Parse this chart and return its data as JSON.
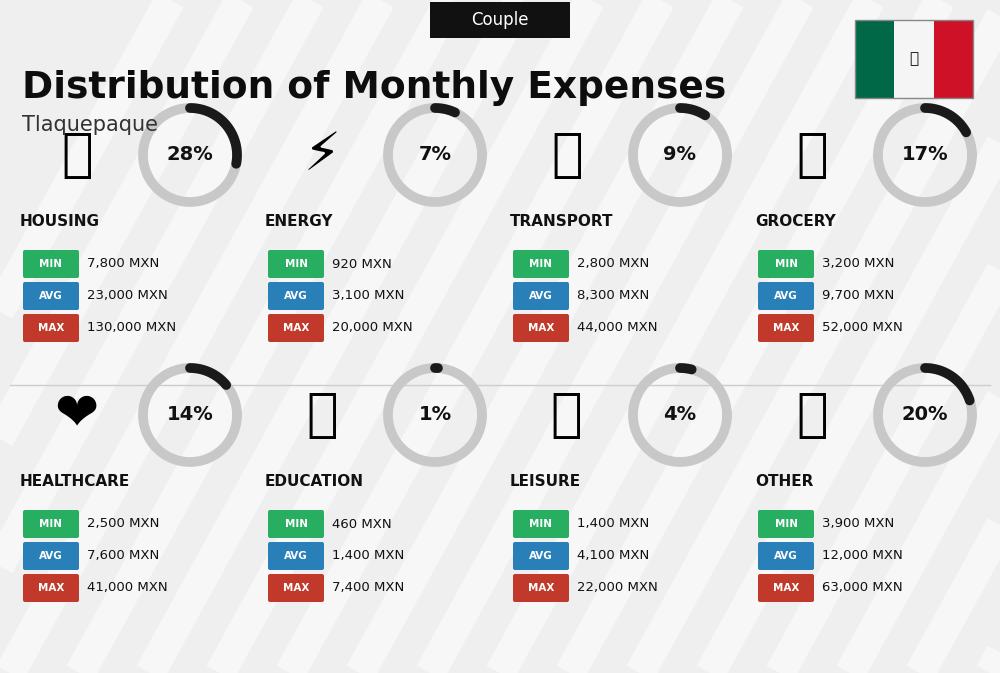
{
  "title": "Distribution of Monthly Expenses",
  "subtitle": "Tlaquepaque",
  "label_couple": "Couple",
  "bg_color": "#efefef",
  "categories": [
    {
      "name": "HOUSING",
      "pct": 28,
      "min": "7,800 MXN",
      "avg": "23,000 MXN",
      "max": "130,000 MXN",
      "row": 0,
      "col": 0
    },
    {
      "name": "ENERGY",
      "pct": 7,
      "min": "920 MXN",
      "avg": "3,100 MXN",
      "max": "20,000 MXN",
      "row": 0,
      "col": 1
    },
    {
      "name": "TRANSPORT",
      "pct": 9,
      "min": "2,800 MXN",
      "avg": "8,300 MXN",
      "max": "44,000 MXN",
      "row": 0,
      "col": 2
    },
    {
      "name": "GROCERY",
      "pct": 17,
      "min": "3,200 MXN",
      "avg": "9,700 MXN",
      "max": "52,000 MXN",
      "row": 0,
      "col": 3
    },
    {
      "name": "HEALTHCARE",
      "pct": 14,
      "min": "2,500 MXN",
      "avg": "7,600 MXN",
      "max": "41,000 MXN",
      "row": 1,
      "col": 0
    },
    {
      "name": "EDUCATION",
      "pct": 1,
      "min": "460 MXN",
      "avg": "1,400 MXN",
      "max": "7,400 MXN",
      "row": 1,
      "col": 1
    },
    {
      "name": "LEISURE",
      "pct": 4,
      "min": "1,400 MXN",
      "avg": "4,100 MXN",
      "max": "22,000 MXN",
      "row": 1,
      "col": 2
    },
    {
      "name": "OTHER",
      "pct": 20,
      "min": "3,900 MXN",
      "avg": "12,000 MXN",
      "max": "63,000 MXN",
      "row": 1,
      "col": 3
    }
  ],
  "color_min": "#27ae60",
  "color_avg": "#2980b9",
  "color_max": "#c0392b",
  "donut_dark": "#1a1a1a",
  "donut_light": "#c8c8c8",
  "flag_green": "#006847",
  "flag_white": "#f5f5f5",
  "flag_red": "#ce1126",
  "icon_map": {
    "HOUSING": "🏢",
    "ENERGY": "⚡",
    "TRANSPORT": "🚌",
    "GROCERY": "🛒",
    "HEALTHCARE": "❤️",
    "EDUCATION": "🎓",
    "LEISURE": "🛍️",
    "OTHER": "💰"
  },
  "stripe_color": "#ffffff",
  "stripe_alpha": 0.55
}
